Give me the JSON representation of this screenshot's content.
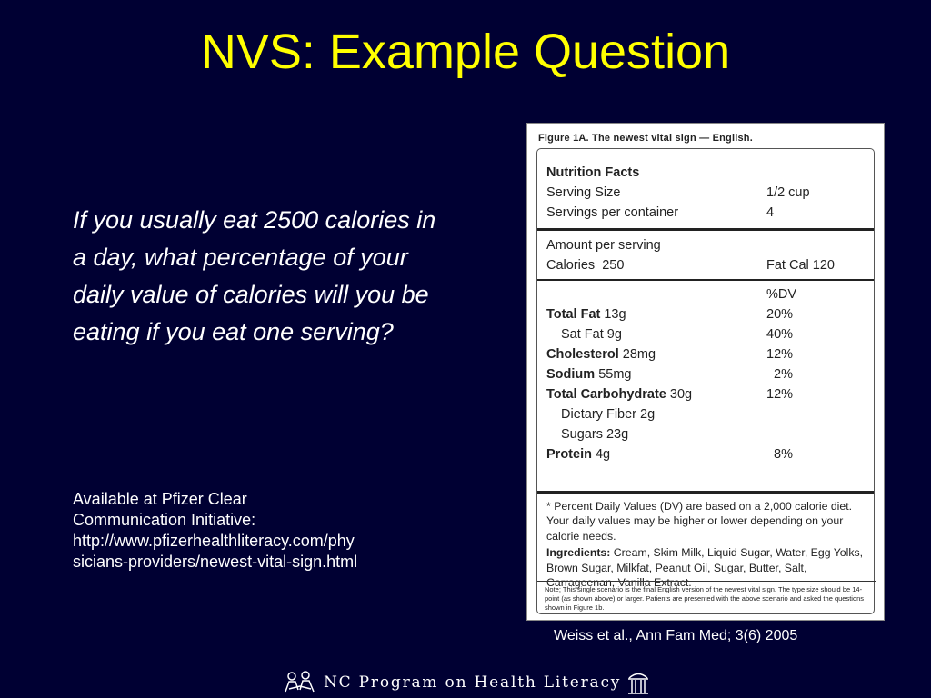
{
  "slide": {
    "title": "NVS: Example Question",
    "question": "If you usually eat 2500 calories in a day, what percentage of your daily value of calories will you be eating if you eat one serving?",
    "source_lines": [
      "Available at Pfizer Clear",
      "Communication Initiative:",
      "http://www.pfizerhealthliteracy.com/phy",
      "sicians-providers/newest-vital-sign.html"
    ],
    "citation": "Weiss et al., Ann Fam Med; 3(6) 2005",
    "footer_text": "NC Program on Health Literacy"
  },
  "figure": {
    "caption": "Figure 1A. The newest vital sign — English.",
    "heading": "Nutrition Facts",
    "serving_size_label": "Serving Size",
    "serving_size_value": "1/2 cup",
    "servings_label": "Servings per container",
    "servings_value": "4",
    "amount_label": "Amount per serving",
    "calories_label": "Calories  250",
    "fat_cal_label": "Fat Cal 120",
    "dv_header": "%DV",
    "nutrients": [
      {
        "name": "Total Fat",
        "amount": " 13g",
        "dv": "20%"
      },
      {
        "name": "Sat Fat",
        "amount": " 9g",
        "dv": "40%"
      },
      {
        "name": "Cholesterol",
        "amount": " 28mg",
        "dv": "12%"
      },
      {
        "name": "Sodium",
        "amount": " 55mg",
        "dv": "  2%"
      },
      {
        "name": "Total Carbohydrate",
        "amount": " 30g",
        "dv": "12%"
      },
      {
        "name": "Dietary Fiber",
        "amount": " 2g",
        "dv": ""
      },
      {
        "name": "Sugars",
        "amount": " 23g",
        "dv": ""
      },
      {
        "name": "Protein",
        "amount": " 4g",
        "dv": "  8%"
      }
    ],
    "footnote": "* Percent Daily Values (DV) are based on a 2,000 calorie diet. Your daily values may be higher or lower depending on your calorie needs.",
    "ingredients_label": "Ingredients:",
    "ingredients_text": " Cream, Skim Milk, Liquid Sugar, Water, Egg Yolks, Brown Sugar, Milkfat, Peanut Oil, Sugar, Butter, Salt, Carrageenan, Vanilla Extract.",
    "note": "Note; This single scenario is the final English version of the newest vital sign. The type size should be 14-point (as shown above) or larger. Patients are presented with the above scenario and asked the questions shown in Figure 1b."
  }
}
